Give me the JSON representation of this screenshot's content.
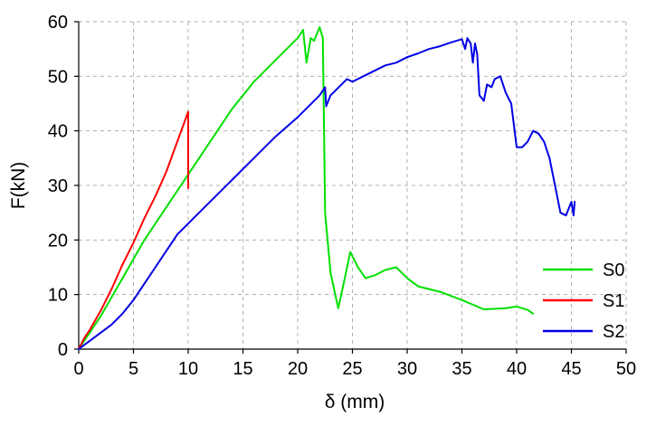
{
  "chart_data": {
    "type": "line",
    "title": "",
    "xlabel": "δ (mm)",
    "ylabel": "F(kN)",
    "xlim": [
      0,
      50
    ],
    "ylim": [
      0,
      60
    ],
    "xticks": [
      0,
      5,
      10,
      15,
      20,
      25,
      30,
      35,
      40,
      45,
      50
    ],
    "yticks": [
      0,
      10,
      20,
      30,
      40,
      50,
      60
    ],
    "grid": true,
    "legend": "bottom-right",
    "series": [
      {
        "name": "S0",
        "color": "#00e000",
        "points": [
          [
            0,
            0
          ],
          [
            0.5,
            1.5
          ],
          [
            1,
            3
          ],
          [
            2,
            6
          ],
          [
            4,
            13
          ],
          [
            6,
            20
          ],
          [
            8,
            26
          ],
          [
            10,
            32
          ],
          [
            12,
            38
          ],
          [
            14,
            44
          ],
          [
            16,
            49
          ],
          [
            18,
            53
          ],
          [
            20,
            57
          ],
          [
            20.5,
            58.5
          ],
          [
            20.8,
            52.5
          ],
          [
            21.2,
            57
          ],
          [
            21.5,
            56.5
          ],
          [
            22,
            59
          ],
          [
            22.3,
            57
          ],
          [
            22.5,
            25
          ],
          [
            23,
            14
          ],
          [
            23.7,
            7.5
          ],
          [
            24.2,
            12
          ],
          [
            24.8,
            17.8
          ],
          [
            25.5,
            15
          ],
          [
            26.2,
            13
          ],
          [
            27,
            13.5
          ],
          [
            28,
            14.5
          ],
          [
            29,
            15
          ],
          [
            30,
            13
          ],
          [
            31,
            11.5
          ],
          [
            33,
            10.5
          ],
          [
            35,
            9
          ],
          [
            37,
            7.3
          ],
          [
            39,
            7.5
          ],
          [
            40,
            7.8
          ],
          [
            41,
            7.2
          ],
          [
            41.5,
            6.5
          ]
        ]
      },
      {
        "name": "S1",
        "color": "#ff0000",
        "points": [
          [
            0,
            0
          ],
          [
            0.5,
            2
          ],
          [
            1,
            3.5
          ],
          [
            2,
            7
          ],
          [
            3,
            11
          ],
          [
            4,
            15.5
          ],
          [
            5,
            19.5
          ],
          [
            6,
            24
          ],
          [
            7,
            28
          ],
          [
            8,
            32.5
          ],
          [
            9,
            38
          ],
          [
            10,
            43.5
          ],
          [
            10,
            29.5
          ]
        ]
      },
      {
        "name": "S2",
        "color": "#0000e6",
        "points": [
          [
            0,
            0
          ],
          [
            1,
            1.5
          ],
          [
            2,
            3
          ],
          [
            3,
            4.5
          ],
          [
            4,
            6.5
          ],
          [
            5,
            9
          ],
          [
            6,
            12
          ],
          [
            7,
            15
          ],
          [
            8,
            18
          ],
          [
            9,
            21
          ],
          [
            10,
            23
          ],
          [
            12,
            27
          ],
          [
            14,
            31
          ],
          [
            16,
            35
          ],
          [
            18,
            39
          ],
          [
            20,
            42.5
          ],
          [
            22,
            46.5
          ],
          [
            22.5,
            48
          ],
          [
            22.6,
            44.5
          ],
          [
            23,
            46.5
          ],
          [
            24,
            48.5
          ],
          [
            24.5,
            49.5
          ],
          [
            25,
            49
          ],
          [
            26,
            50
          ],
          [
            27,
            51
          ],
          [
            28,
            52
          ],
          [
            29,
            52.5
          ],
          [
            30,
            53.5
          ],
          [
            31,
            54.2
          ],
          [
            32,
            55
          ],
          [
            33,
            55.5
          ],
          [
            34,
            56.2
          ],
          [
            35,
            56.8
          ],
          [
            35.3,
            55
          ],
          [
            35.5,
            57
          ],
          [
            35.8,
            56
          ],
          [
            36,
            52.5
          ],
          [
            36.2,
            56
          ],
          [
            36.4,
            54
          ],
          [
            36.6,
            46.5
          ],
          [
            37,
            45.5
          ],
          [
            37.3,
            48.5
          ],
          [
            37.7,
            48
          ],
          [
            38,
            49.5
          ],
          [
            38.5,
            50
          ],
          [
            39,
            47
          ],
          [
            39.5,
            45
          ],
          [
            40,
            37
          ],
          [
            40.5,
            37
          ],
          [
            41,
            38
          ],
          [
            41.5,
            40
          ],
          [
            42,
            39.5
          ],
          [
            42.5,
            38
          ],
          [
            43,
            35
          ],
          [
            43.5,
            30
          ],
          [
            44,
            25
          ],
          [
            44.5,
            24.5
          ],
          [
            45,
            27
          ],
          [
            45.2,
            24.5
          ],
          [
            45.3,
            27
          ]
        ]
      }
    ]
  }
}
